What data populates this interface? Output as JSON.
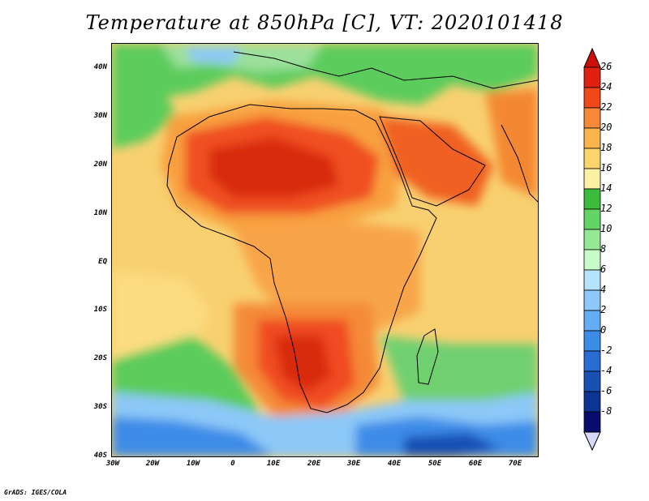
{
  "title": "Temperature at 850hPa [C], VT: 2020101418",
  "footer": "GrADS: IGES/COLA",
  "map": {
    "lat_labels": [
      "40N",
      "30N",
      "20N",
      "10N",
      "EQ",
      "10S",
      "20S",
      "30S",
      "40S"
    ],
    "lon_labels": [
      "30W",
      "20W",
      "10W",
      "0",
      "10E",
      "20E",
      "30E",
      "40E",
      "50E",
      "60E",
      "70E"
    ],
    "ocean_color": "#f8d878"
  },
  "colorbar": {
    "labels": [
      "26",
      "24",
      "22",
      "20",
      "18",
      "16",
      "14",
      "12",
      "10",
      "8",
      "6",
      "4",
      "2",
      "0",
      "-2",
      "-4",
      "-6",
      "-8"
    ],
    "colors": [
      "#e02010",
      "#f04818",
      "#f88838",
      "#fcb44c",
      "#fcd46c",
      "#fcf0a4",
      "#3cbc3c",
      "#64d464",
      "#96e896",
      "#c8fcc8",
      "#b4e4fc",
      "#8cc8f8",
      "#64acf4",
      "#3c8ce8",
      "#286cd4",
      "#1850b4",
      "#0c3494",
      "#080c6c"
    ],
    "top_arrow_color": "#cc1008",
    "bottom_arrow_color": "#d8d8f8"
  }
}
